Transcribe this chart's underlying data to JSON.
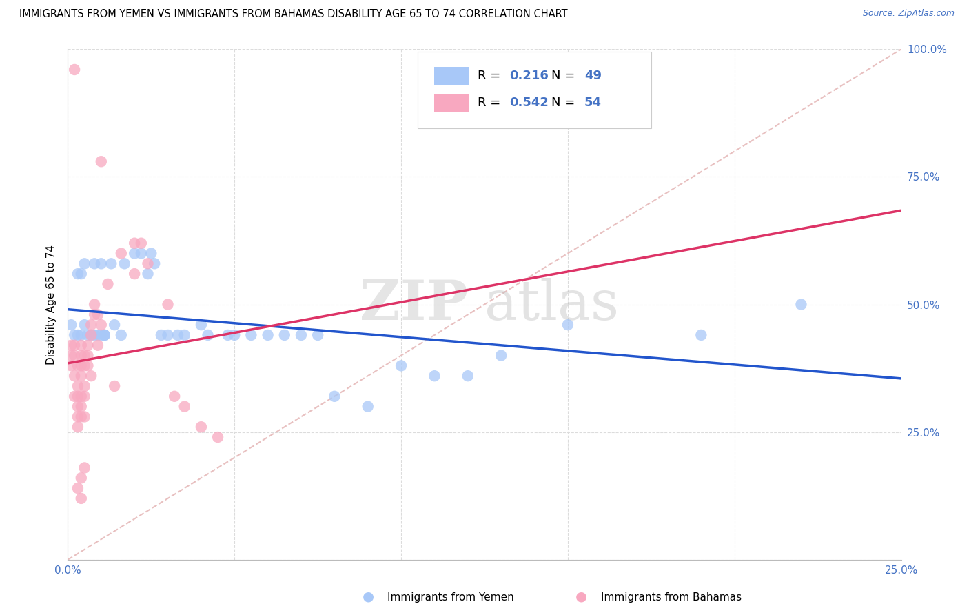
{
  "title": "IMMIGRANTS FROM YEMEN VS IMMIGRANTS FROM BAHAMAS DISABILITY AGE 65 TO 74 CORRELATION CHART",
  "source": "Source: ZipAtlas.com",
  "ylabel": "Disability Age 65 to 74",
  "xlim": [
    0.0,
    0.25
  ],
  "ylim": [
    0.0,
    1.0
  ],
  "legend_r_blue": "0.216",
  "legend_n_blue": "49",
  "legend_r_pink": "0.542",
  "legend_n_pink": "54",
  "blue_color": "#A8C8F8",
  "pink_color": "#F8A8C0",
  "trendline_blue": "#2255CC",
  "trendline_pink": "#DD3366",
  "diagonal_color": "#E8C0C0",
  "watermark_zip": "ZIP",
  "watermark_atlas": "atlas",
  "blue_scatter_x": [
    0.001,
    0.002,
    0.003,
    0.003,
    0.004,
    0.004,
    0.005,
    0.005,
    0.006,
    0.007,
    0.008,
    0.008,
    0.009,
    0.01,
    0.01,
    0.011,
    0.011,
    0.011,
    0.013,
    0.014,
    0.016,
    0.017,
    0.02,
    0.022,
    0.024,
    0.025,
    0.026,
    0.028,
    0.03,
    0.033,
    0.035,
    0.04,
    0.042,
    0.048,
    0.05,
    0.055,
    0.06,
    0.065,
    0.07,
    0.075,
    0.08,
    0.09,
    0.1,
    0.11,
    0.12,
    0.13,
    0.15,
    0.19,
    0.22
  ],
  "blue_scatter_y": [
    0.46,
    0.44,
    0.44,
    0.56,
    0.44,
    0.56,
    0.46,
    0.58,
    0.44,
    0.44,
    0.44,
    0.58,
    0.44,
    0.44,
    0.58,
    0.44,
    0.44,
    0.44,
    0.58,
    0.46,
    0.44,
    0.58,
    0.6,
    0.6,
    0.56,
    0.6,
    0.58,
    0.44,
    0.44,
    0.44,
    0.44,
    0.46,
    0.44,
    0.44,
    0.44,
    0.44,
    0.44,
    0.44,
    0.44,
    0.44,
    0.32,
    0.3,
    0.38,
    0.36,
    0.36,
    0.4,
    0.46,
    0.44,
    0.5
  ],
  "pink_scatter_x": [
    0.001,
    0.001,
    0.001,
    0.002,
    0.002,
    0.002,
    0.002,
    0.003,
    0.003,
    0.003,
    0.003,
    0.003,
    0.003,
    0.003,
    0.004,
    0.004,
    0.004,
    0.004,
    0.004,
    0.004,
    0.004,
    0.004,
    0.004,
    0.005,
    0.005,
    0.005,
    0.005,
    0.005,
    0.005,
    0.006,
    0.006,
    0.006,
    0.007,
    0.007,
    0.007,
    0.008,
    0.008,
    0.009,
    0.009,
    0.01,
    0.012,
    0.014,
    0.016,
    0.02,
    0.02,
    0.022,
    0.024,
    0.03,
    0.032,
    0.035,
    0.04,
    0.045,
    0.002,
    0.01
  ],
  "pink_scatter_y": [
    0.42,
    0.4,
    0.38,
    0.42,
    0.4,
    0.36,
    0.32,
    0.38,
    0.34,
    0.32,
    0.3,
    0.28,
    0.26,
    0.14,
    0.42,
    0.4,
    0.38,
    0.36,
    0.32,
    0.3,
    0.28,
    0.16,
    0.12,
    0.4,
    0.38,
    0.34,
    0.32,
    0.28,
    0.18,
    0.42,
    0.4,
    0.38,
    0.46,
    0.44,
    0.36,
    0.5,
    0.48,
    0.48,
    0.42,
    0.46,
    0.54,
    0.34,
    0.6,
    0.62,
    0.56,
    0.62,
    0.58,
    0.5,
    0.32,
    0.3,
    0.26,
    0.24,
    0.96,
    0.78
  ]
}
